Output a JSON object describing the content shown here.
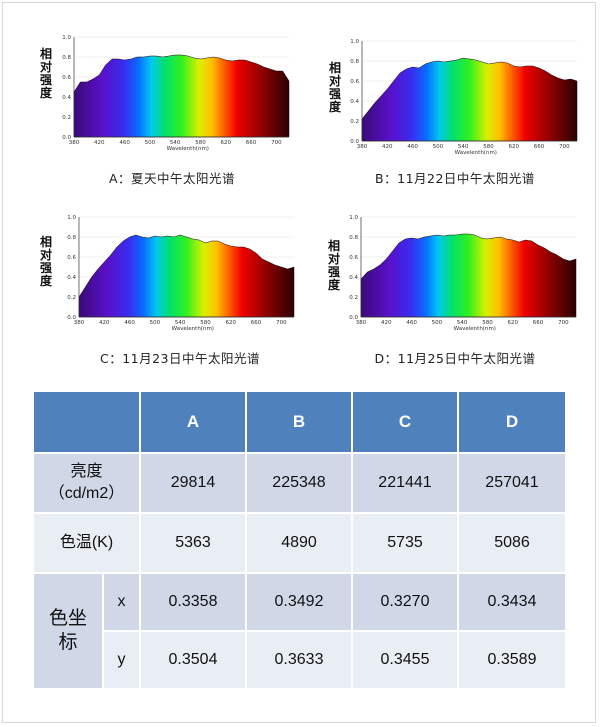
{
  "colors": {
    "header_bg": "#4f81bd",
    "row_dark": "#d0d8e8",
    "row_light": "#e9edf4"
  },
  "chart_data": [
    {
      "type": "area",
      "caption": "A：夏天中午太阳光谱",
      "ylabel": "相对强度",
      "xlabel": "Wavelenth(nm)",
      "xlim": [
        380,
        720
      ],
      "ylim": [
        0,
        1.0
      ],
      "xticks": [
        "380",
        "420",
        "460",
        "500",
        "540",
        "580",
        "620",
        "660",
        "700"
      ],
      "yticks": [
        "0.0",
        "0.2",
        "0.4",
        "0.6",
        "0.8",
        "1.0"
      ],
      "x": [
        380,
        390,
        400,
        410,
        420,
        430,
        440,
        450,
        460,
        470,
        480,
        490,
        500,
        510,
        520,
        530,
        540,
        550,
        560,
        570,
        580,
        590,
        600,
        610,
        620,
        630,
        640,
        650,
        660,
        670,
        680,
        690,
        700,
        710,
        720
      ],
      "y": [
        0.45,
        0.55,
        0.55,
        0.58,
        0.62,
        0.72,
        0.78,
        0.78,
        0.77,
        0.78,
        0.8,
        0.8,
        0.81,
        0.81,
        0.8,
        0.81,
        0.82,
        0.82,
        0.81,
        0.79,
        0.78,
        0.79,
        0.8,
        0.79,
        0.77,
        0.76,
        0.77,
        0.77,
        0.75,
        0.73,
        0.7,
        0.68,
        0.66,
        0.66,
        0.56
      ]
    },
    {
      "type": "area",
      "caption": "B：11月22日中午太阳光谱",
      "ylabel": "相对强度",
      "xlabel": "Wavelenth(nm)",
      "xlim": [
        380,
        720
      ],
      "ylim": [
        0,
        1.0
      ],
      "xticks": [
        "380",
        "420",
        "460",
        "500",
        "540",
        "580",
        "620",
        "660",
        "700"
      ],
      "yticks": [
        "0.0",
        "0.2",
        "0.4",
        "0.6",
        "0.8",
        "1.0"
      ],
      "x": [
        380,
        390,
        400,
        410,
        420,
        430,
        440,
        450,
        460,
        470,
        480,
        490,
        500,
        510,
        520,
        530,
        540,
        550,
        560,
        570,
        580,
        590,
        600,
        610,
        620,
        630,
        640,
        650,
        660,
        670,
        680,
        690,
        700,
        710,
        720
      ],
      "y": [
        0.22,
        0.3,
        0.38,
        0.45,
        0.52,
        0.6,
        0.68,
        0.72,
        0.74,
        0.73,
        0.77,
        0.79,
        0.8,
        0.79,
        0.8,
        0.81,
        0.83,
        0.82,
        0.81,
        0.79,
        0.77,
        0.78,
        0.79,
        0.78,
        0.75,
        0.74,
        0.75,
        0.75,
        0.73,
        0.7,
        0.66,
        0.63,
        0.61,
        0.62,
        0.6
      ]
    },
    {
      "type": "area",
      "caption": "C：11月23日中午太阳光谱",
      "ylabel": "相对强度",
      "xlabel": "Wavelenth(nm)",
      "xlim": [
        380,
        720
      ],
      "ylim": [
        0,
        1.0
      ],
      "xticks": [
        "380",
        "420",
        "460",
        "500",
        "540",
        "580",
        "620",
        "660",
        "700"
      ],
      "yticks": [
        "0.0",
        "0.2",
        "0.4",
        "0.6",
        "0.8",
        "1.0"
      ],
      "x": [
        380,
        390,
        400,
        410,
        420,
        430,
        440,
        450,
        460,
        470,
        480,
        490,
        500,
        510,
        520,
        530,
        540,
        550,
        560,
        570,
        580,
        590,
        600,
        610,
        620,
        630,
        640,
        650,
        660,
        670,
        680,
        690,
        700,
        710,
        720
      ],
      "y": [
        0.2,
        0.3,
        0.4,
        0.48,
        0.55,
        0.62,
        0.7,
        0.76,
        0.8,
        0.82,
        0.8,
        0.79,
        0.81,
        0.8,
        0.81,
        0.8,
        0.82,
        0.8,
        0.78,
        0.77,
        0.74,
        0.76,
        0.76,
        0.73,
        0.71,
        0.7,
        0.7,
        0.68,
        0.64,
        0.58,
        0.55,
        0.52,
        0.5,
        0.48,
        0.5
      ]
    },
    {
      "type": "area",
      "caption": "D：11月25日中午太阳光谱",
      "ylabel": "相对强度",
      "xlabel": "Wavelenth(nm)",
      "xlim": [
        380,
        720
      ],
      "ylim": [
        0,
        1.0
      ],
      "xticks": [
        "380",
        "420",
        "460",
        "500",
        "540",
        "580",
        "620",
        "660",
        "700"
      ],
      "yticks": [
        "0.0",
        "0.2",
        "0.4",
        "0.6",
        "0.8",
        "1.0"
      ],
      "x": [
        380,
        390,
        400,
        410,
        420,
        430,
        440,
        450,
        460,
        470,
        480,
        490,
        500,
        510,
        520,
        530,
        540,
        550,
        560,
        570,
        580,
        590,
        600,
        610,
        620,
        630,
        640,
        650,
        660,
        670,
        680,
        690,
        700,
        710,
        720
      ],
      "y": [
        0.38,
        0.45,
        0.48,
        0.52,
        0.58,
        0.66,
        0.74,
        0.78,
        0.79,
        0.78,
        0.8,
        0.81,
        0.82,
        0.81,
        0.82,
        0.82,
        0.83,
        0.83,
        0.82,
        0.79,
        0.78,
        0.79,
        0.8,
        0.78,
        0.77,
        0.75,
        0.77,
        0.76,
        0.72,
        0.69,
        0.65,
        0.62,
        0.58,
        0.56,
        0.58
      ]
    }
  ],
  "table": {
    "headers": [
      "",
      "A",
      "B",
      "C",
      "D"
    ],
    "rows": [
      {
        "label_line1": "亮度",
        "label_line2": "（cd/m2）",
        "values": [
          "29814",
          "225348",
          "221441",
          "257041"
        ]
      },
      {
        "label": "色温(K)",
        "values": [
          "5363",
          "4890",
          "5735",
          "5086"
        ]
      },
      {
        "group_label_line1": "色坐",
        "group_label_line2": "标",
        "sub": "x",
        "values": [
          "0.3358",
          "0.3492",
          "0.3270",
          "0.3434"
        ]
      },
      {
        "sub": "y",
        "values": [
          "0.3504",
          "0.3633",
          "0.3455",
          "0.3589"
        ]
      }
    ]
  }
}
